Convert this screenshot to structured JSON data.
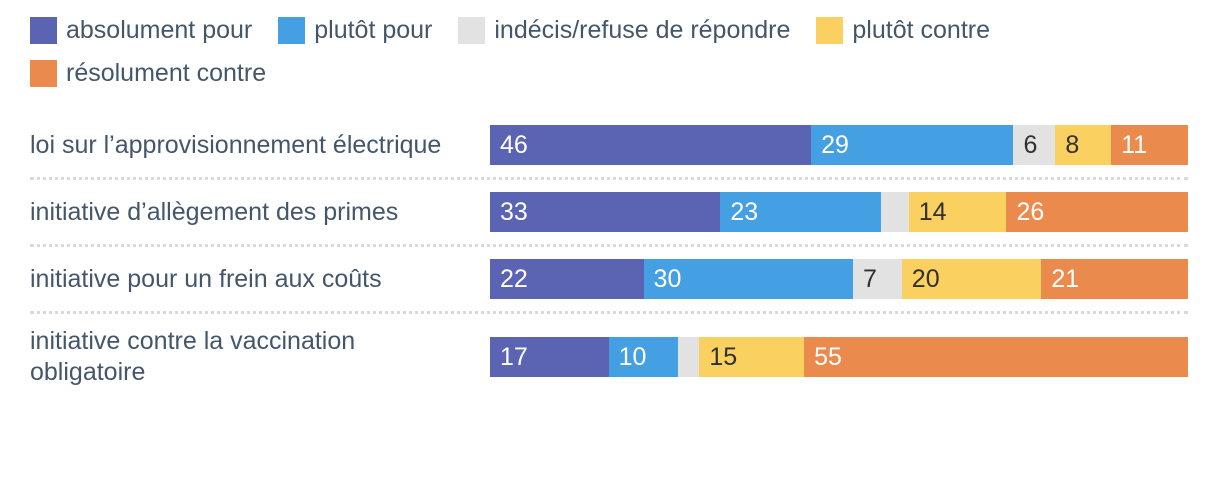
{
  "page": {
    "background": "#ffffff",
    "text_color": "#44566a",
    "divider_color": "#d9d9d9"
  },
  "chart_data": {
    "type": "bar",
    "variant": "horizontal-stacked",
    "unit": "percent",
    "title": "",
    "xlabel": "",
    "ylabel": "",
    "xlim": [
      0,
      100
    ],
    "grid": false,
    "legend_position": "top",
    "value_label_min": 5,
    "categories": [
      "loi sur l’approvisionnement électrique",
      "initiative d’allègement des primes",
      "initiative pour un frein aux coûts",
      "initiative contre la vaccination obligatoire"
    ],
    "series": [
      {
        "name": "absolument pour",
        "color": "#5a64b2",
        "label_color": "#ffffff",
        "values": [
          46,
          33,
          22,
          17
        ]
      },
      {
        "name": "plutôt pour",
        "color": "#459fe3",
        "label_color": "#ffffff",
        "values": [
          29,
          23,
          30,
          10
        ]
      },
      {
        "name": "indécis/refuse de répondre",
        "color": "#e2e2e2",
        "label_color": "#303030",
        "values": [
          6,
          4,
          7,
          3
        ]
      },
      {
        "name": "plutôt contre",
        "color": "#fad161",
        "label_color": "#303030",
        "values": [
          8,
          14,
          20,
          15
        ]
      },
      {
        "name": "résolument contre",
        "color": "#eb8a4d",
        "label_color": "#ffffff",
        "values": [
          11,
          26,
          21,
          55
        ]
      }
    ]
  }
}
